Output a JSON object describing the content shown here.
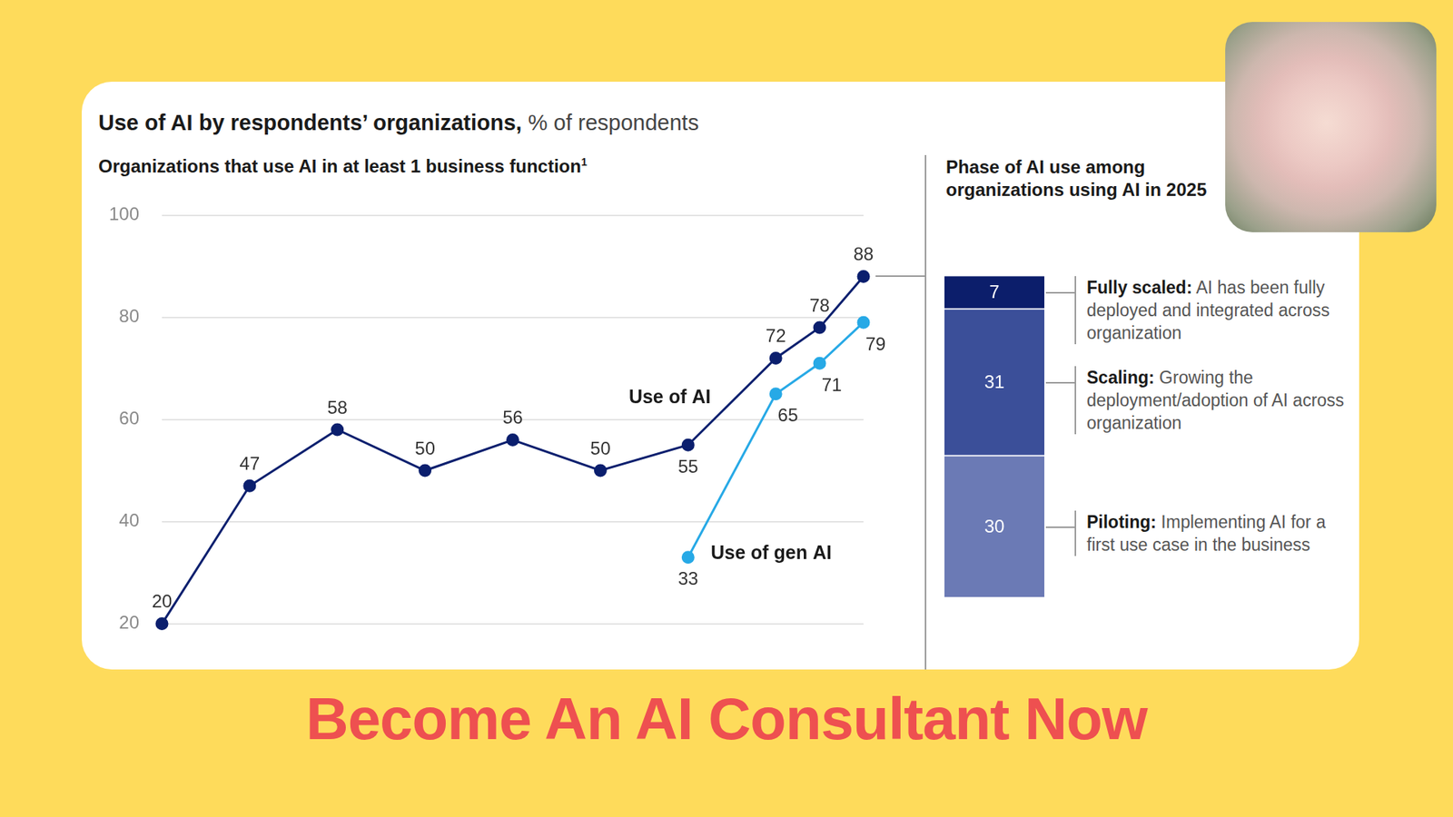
{
  "header": {
    "title": "Become An AI Consultant Now"
  },
  "chart_data": [
    {
      "type": "line",
      "title": "Use of AI by respondents’ organizations,",
      "subtitle": "% of respondents",
      "chart_title": "Organizations that use AI in at least 1 business function",
      "footnote_marker": "1",
      "x": [
        0,
        1,
        2,
        3,
        4,
        5,
        6,
        7,
        7.5,
        8
      ],
      "xlim": [
        0,
        8
      ],
      "ylim": [
        20,
        100
      ],
      "yticks": [
        20,
        40,
        60,
        80,
        100
      ],
      "grid": true,
      "tick_labels": "y",
      "data_labels": true,
      "series": [
        {
          "name": "Use of AI",
          "color": "#0b1f6e",
          "marker": "circle",
          "values": [
            20,
            47,
            58,
            50,
            56,
            50,
            55,
            72,
            78,
            88
          ]
        },
        {
          "name": "Use of gen AI",
          "color": "#27a9e6",
          "marker": "circle",
          "values": [
            null,
            null,
            null,
            null,
            null,
            null,
            33,
            65,
            71,
            79
          ]
        }
      ]
    },
    {
      "type": "bar",
      "title": "Phase of AI use among organizations using AI in 2025",
      "categories": [
        null
      ],
      "stacked": true,
      "data_labels": true,
      "tick_labels": false,
      "grid": false,
      "ylim": [
        0,
        100
      ],
      "series": [
        {
          "name": "Fully scaled:",
          "description": "AI has been fully deployed and integrated across organization",
          "color": "#0c1e6b",
          "values": [
            7
          ]
        },
        {
          "name": "Scaling:",
          "description": "Growing the deployment/adoption of AI across organization",
          "color": "#3b4f99",
          "values": [
            31
          ]
        },
        {
          "name": "Piloting:",
          "description": "Implementing AI for a first use case in the business",
          "color": "#6b7ab5",
          "values": [
            30
          ]
        }
      ]
    }
  ]
}
